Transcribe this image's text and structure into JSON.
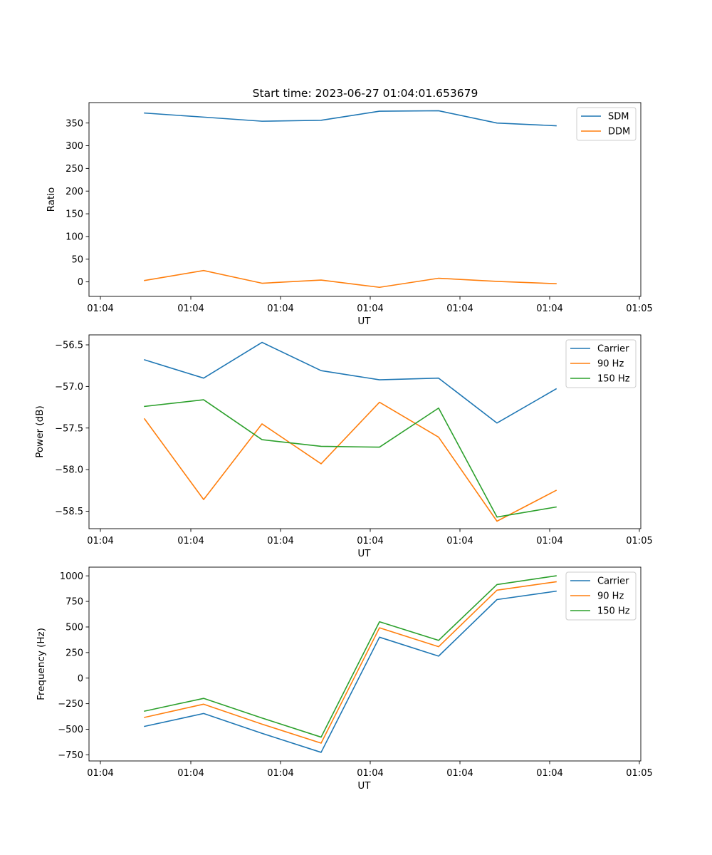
{
  "title": "Start time: 2023-06-27 01:04:01.653679",
  "chart_data": [
    {
      "type": "line",
      "xlabel": "UT",
      "ylabel": "Ratio",
      "x_tick_labels": [
        "01:04",
        "01:04",
        "01:04",
        "01:04",
        "01:04",
        "01:04",
        "01:05"
      ],
      "y_ticks": [
        0,
        50,
        100,
        150,
        200,
        250,
        300,
        350
      ],
      "y_tick_labels": [
        "0",
        "50",
        "100",
        "150",
        "200",
        "250",
        "300",
        "350"
      ],
      "ylim": [
        -32,
        395
      ],
      "legend_position": "top-right",
      "series": [
        {
          "name": "SDM",
          "color": "#1f77b4",
          "values": [
            372,
            363,
            354,
            356,
            376,
            377,
            350,
            344
          ]
        },
        {
          "name": "DDM",
          "color": "#ff7f0e",
          "values": [
            3,
            25,
            -3,
            4,
            -12,
            8,
            1,
            -4
          ]
        }
      ]
    },
    {
      "type": "line",
      "xlabel": "UT",
      "ylabel": "Power (dB)",
      "x_tick_labels": [
        "01:04",
        "01:04",
        "01:04",
        "01:04",
        "01:04",
        "01:04",
        "01:05"
      ],
      "y_ticks": [
        -58.5,
        -58.0,
        -57.5,
        -57.0,
        -56.5
      ],
      "y_tick_labels": [
        "−58.5",
        "−58.0",
        "−57.5",
        "−57.0",
        "−56.5"
      ],
      "ylim": [
        -58.71,
        -56.38
      ],
      "legend_position": "top-right",
      "series": [
        {
          "name": "Carrier",
          "color": "#1f77b4",
          "values": [
            -56.68,
            -56.9,
            -56.47,
            -56.81,
            -56.92,
            -56.9,
            -57.44,
            -57.03
          ]
        },
        {
          "name": "90 Hz",
          "color": "#ff7f0e",
          "values": [
            -57.39,
            -58.36,
            -57.45,
            -57.93,
            -57.19,
            -57.61,
            -58.62,
            -58.25
          ]
        },
        {
          "name": "150 Hz",
          "color": "#2ca02c",
          "values": [
            -57.24,
            -57.16,
            -57.64,
            -57.72,
            -57.73,
            -57.26,
            -58.57,
            -58.45
          ]
        }
      ]
    },
    {
      "type": "line",
      "xlabel": "UT",
      "ylabel": "Frequency (Hz)",
      "x_tick_labels": [
        "01:04",
        "01:04",
        "01:04",
        "01:04",
        "01:04",
        "01:04",
        "01:05"
      ],
      "y_ticks": [
        -750,
        -500,
        -250,
        0,
        250,
        500,
        750,
        1000
      ],
      "y_tick_labels": [
        "−750",
        "−500",
        "−250",
        "0",
        "250",
        "500",
        "750",
        "1000"
      ],
      "ylim": [
        -810,
        1085
      ],
      "legend_position": "top-right",
      "series": [
        {
          "name": "Carrier",
          "color": "#1f77b4",
          "values": [
            -472,
            -346,
            -540,
            -726,
            400,
            215,
            768,
            850
          ]
        },
        {
          "name": "90 Hz",
          "color": "#ff7f0e",
          "values": [
            -384,
            -255,
            -450,
            -636,
            492,
            307,
            860,
            942
          ]
        },
        {
          "name": "150 Hz",
          "color": "#2ca02c",
          "values": [
            -323,
            -198,
            -390,
            -577,
            551,
            369,
            915,
            1000
          ]
        }
      ]
    }
  ]
}
